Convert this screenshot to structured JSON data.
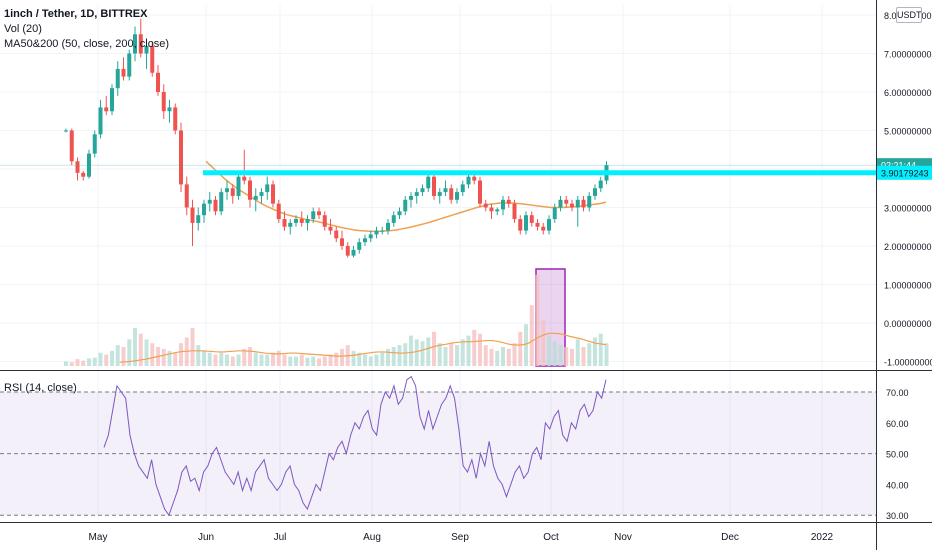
{
  "legend": {
    "title": "1inch / Tether, 1D, BITTREX",
    "volume": "Vol (20)",
    "moving_averages": "MA50&200 (50, close, 200, close)",
    "rsi": "RSI (14, close)"
  },
  "currency": "USDT",
  "price_axis": {
    "ticks": [
      "8.00000000",
      "7.00000000",
      "6.00000000",
      "5.00000000",
      "3.00000000",
      "2.00000000",
      "1.00000000",
      "0.00000000",
      "-1.00000000"
    ],
    "countdown": "02:21:44",
    "level_label": "3.90179243"
  },
  "rsi_axis": {
    "ticks": [
      "70.00",
      "60.00",
      "50.00",
      "40.00",
      "30.00"
    ]
  },
  "time_axis": {
    "labels": [
      "May",
      "Jun",
      "Jul",
      "Aug",
      "Sep",
      "Oct",
      "Nov",
      "Dec",
      "2022"
    ]
  },
  "colors": {
    "up": "#26a69a",
    "down": "#ef5350",
    "level_line": "#00f0ff",
    "ma_line": "#f0a050",
    "rsi_line": "#7e57c2",
    "highlight": "#9c27b0"
  },
  "chart_data": [
    {
      "type": "candlestick",
      "title": "1inch / Tether, 1D, BITTREX",
      "ylim": [
        -1.2,
        8.2
      ],
      "candles": [
        [
          5.0,
          5.05,
          4.95,
          5.0
        ],
        [
          5.0,
          5.05,
          4.1,
          4.2
        ],
        [
          4.2,
          4.3,
          3.7,
          3.9
        ],
        [
          3.9,
          3.95,
          3.7,
          3.8
        ],
        [
          3.8,
          4.5,
          3.75,
          4.4
        ],
        [
          4.4,
          5.0,
          4.3,
          4.9
        ],
        [
          4.9,
          5.8,
          4.8,
          5.6
        ],
        [
          5.6,
          5.9,
          5.4,
          5.5
        ],
        [
          5.5,
          6.2,
          5.4,
          6.1
        ],
        [
          6.1,
          6.8,
          5.9,
          6.6
        ],
        [
          6.6,
          6.9,
          6.3,
          6.4
        ],
        [
          6.4,
          7.1,
          6.3,
          7.0
        ],
        [
          7.0,
          7.7,
          6.8,
          7.5
        ],
        [
          7.5,
          7.9,
          6.9,
          7.0
        ],
        [
          7.0,
          7.4,
          6.6,
          7.2
        ],
        [
          7.2,
          7.3,
          6.4,
          6.5
        ],
        [
          6.5,
          6.7,
          5.9,
          6.0
        ],
        [
          6.0,
          6.2,
          5.3,
          5.5
        ],
        [
          5.5,
          5.8,
          5.2,
          5.6
        ],
        [
          5.6,
          5.7,
          4.9,
          5.0
        ],
        [
          5.0,
          5.2,
          3.4,
          3.6
        ],
        [
          3.6,
          3.8,
          2.8,
          3.0
        ],
        [
          3.0,
          3.2,
          2.0,
          2.6
        ],
        [
          2.6,
          3.0,
          2.4,
          2.8
        ],
        [
          2.8,
          3.2,
          2.6,
          3.1
        ],
        [
          3.1,
          3.4,
          2.9,
          3.2
        ],
        [
          3.2,
          3.3,
          2.8,
          2.9
        ],
        [
          2.9,
          3.5,
          2.8,
          3.4
        ],
        [
          3.4,
          3.7,
          3.2,
          3.5
        ],
        [
          3.5,
          3.6,
          3.1,
          3.3
        ],
        [
          3.3,
          3.9,
          3.2,
          3.8
        ],
        [
          3.8,
          4.5,
          3.6,
          3.7
        ],
        [
          3.7,
          3.8,
          3.0,
          3.2
        ],
        [
          3.2,
          3.5,
          2.9,
          3.3
        ],
        [
          3.3,
          3.5,
          3.1,
          3.4
        ],
        [
          3.4,
          3.8,
          3.2,
          3.6
        ],
        [
          3.6,
          3.7,
          3.0,
          3.1
        ],
        [
          3.1,
          3.2,
          2.6,
          2.7
        ],
        [
          2.7,
          2.9,
          2.4,
          2.5
        ],
        [
          2.5,
          2.7,
          2.3,
          2.6
        ],
        [
          2.6,
          2.8,
          2.5,
          2.7
        ],
        [
          2.7,
          2.9,
          2.5,
          2.6
        ],
        [
          2.6,
          2.8,
          2.4,
          2.7
        ],
        [
          2.7,
          3.0,
          2.6,
          2.9
        ],
        [
          2.9,
          3.0,
          2.7,
          2.8
        ],
        [
          2.8,
          2.9,
          2.4,
          2.5
        ],
        [
          2.5,
          2.7,
          2.3,
          2.4
        ],
        [
          2.4,
          2.5,
          2.1,
          2.2
        ],
        [
          2.2,
          2.4,
          1.9,
          2.0
        ],
        [
          2.0,
          2.1,
          1.7,
          1.75
        ],
        [
          1.75,
          2.0,
          1.7,
          1.9
        ],
        [
          1.9,
          2.2,
          1.8,
          2.1
        ],
        [
          2.1,
          2.3,
          2.0,
          2.2
        ],
        [
          2.2,
          2.4,
          2.1,
          2.3
        ],
        [
          2.3,
          2.5,
          2.2,
          2.4
        ],
        [
          2.4,
          2.5,
          2.3,
          2.4
        ],
        [
          2.4,
          2.7,
          2.3,
          2.6
        ],
        [
          2.6,
          2.9,
          2.5,
          2.8
        ],
        [
          2.8,
          3.0,
          2.7,
          2.9
        ],
        [
          2.9,
          3.3,
          2.8,
          3.2
        ],
        [
          3.2,
          3.4,
          3.0,
          3.3
        ],
        [
          3.3,
          3.5,
          3.1,
          3.4
        ],
        [
          3.4,
          3.6,
          3.3,
          3.5
        ],
        [
          3.5,
          3.9,
          3.4,
          3.8
        ],
        [
          3.8,
          3.9,
          3.2,
          3.3
        ],
        [
          3.3,
          3.5,
          3.1,
          3.4
        ],
        [
          3.4,
          3.7,
          3.3,
          3.5
        ],
        [
          3.5,
          3.6,
          3.1,
          3.2
        ],
        [
          3.2,
          3.5,
          3.1,
          3.4
        ],
        [
          3.4,
          3.7,
          3.3,
          3.6
        ],
        [
          3.6,
          3.9,
          3.5,
          3.8
        ],
        [
          3.8,
          3.95,
          3.6,
          3.7
        ],
        [
          3.7,
          3.8,
          3.0,
          3.1
        ],
        [
          3.1,
          3.2,
          2.9,
          3.0
        ],
        [
          3.0,
          3.1,
          2.7,
          2.9
        ],
        [
          2.9,
          3.0,
          2.8,
          2.95
        ],
        [
          2.95,
          3.3,
          2.8,
          3.2
        ],
        [
          3.2,
          3.3,
          3.0,
          3.1
        ],
        [
          3.1,
          3.2,
          2.6,
          2.7
        ],
        [
          2.7,
          2.8,
          2.3,
          2.4
        ],
        [
          2.4,
          2.9,
          2.3,
          2.8
        ],
        [
          2.8,
          2.9,
          2.5,
          2.6
        ],
        [
          2.6,
          2.7,
          2.4,
          2.5
        ],
        [
          2.5,
          2.6,
          2.3,
          2.4
        ],
        [
          2.4,
          2.8,
          2.3,
          2.7
        ],
        [
          2.7,
          3.1,
          2.6,
          3.0
        ],
        [
          3.0,
          3.3,
          2.9,
          3.2
        ],
        [
          3.2,
          3.3,
          3.0,
          3.1
        ],
        [
          3.1,
          3.2,
          2.9,
          3.0
        ],
        [
          3.0,
          3.3,
          2.5,
          3.2
        ],
        [
          3.2,
          3.3,
          2.9,
          3.0
        ],
        [
          3.0,
          3.4,
          2.9,
          3.3
        ],
        [
          3.3,
          3.6,
          3.2,
          3.5
        ],
        [
          3.5,
          3.8,
          3.4,
          3.7
        ],
        [
          3.7,
          4.2,
          3.6,
          4.1
        ]
      ],
      "series": [
        {
          "name": "MA50",
          "values": [
            4.2,
            4.05,
            3.9,
            3.75,
            3.62,
            3.5,
            3.4,
            3.3,
            3.2,
            3.1,
            3.02,
            2.95,
            2.88,
            2.82,
            2.78,
            2.74,
            2.7,
            2.67,
            2.64,
            2.6,
            2.56,
            2.52,
            2.48,
            2.45,
            2.42,
            2.4,
            2.39,
            2.38,
            2.38,
            2.39,
            2.4,
            2.42,
            2.45,
            2.48,
            2.52,
            2.56,
            2.6,
            2.65,
            2.7,
            2.75,
            2.8,
            2.85,
            2.9,
            2.95,
            3.0,
            3.04,
            3.08,
            3.1,
            3.12,
            3.12,
            3.11,
            3.1,
            3.08,
            3.06,
            3.04,
            3.02,
            3.0,
            3.0,
            3.0,
            3.01,
            3.02,
            3.04,
            3.06,
            3.08,
            3.1,
            3.14
          ]
        }
      ],
      "horizontal_level": 3.90179243,
      "last_price_marker": 4.1
    },
    {
      "type": "bar",
      "title": "Vol (20)",
      "values": [
        0.12,
        0.1,
        0.18,
        0.14,
        0.2,
        0.22,
        0.35,
        0.3,
        0.4,
        0.55,
        0.5,
        0.7,
        1.0,
        0.85,
        0.7,
        0.6,
        0.5,
        0.45,
        0.4,
        0.35,
        0.6,
        0.75,
        1.0,
        0.55,
        0.4,
        0.35,
        0.3,
        0.35,
        0.3,
        0.25,
        0.3,
        0.45,
        0.5,
        0.35,
        0.3,
        0.3,
        0.35,
        0.4,
        0.3,
        0.25,
        0.25,
        0.3,
        0.22,
        0.25,
        0.2,
        0.25,
        0.3,
        0.35,
        0.45,
        0.55,
        0.4,
        0.35,
        0.3,
        0.25,
        0.3,
        0.35,
        0.45,
        0.5,
        0.55,
        0.6,
        0.8,
        0.7,
        0.65,
        0.75,
        0.9,
        0.6,
        0.5,
        0.6,
        0.55,
        0.7,
        0.8,
        0.95,
        0.85,
        0.55,
        0.45,
        0.4,
        0.5,
        0.45,
        0.6,
        0.9,
        1.1,
        1.6,
        2.4,
        1.2,
        0.8,
        0.65,
        0.55,
        0.5,
        0.45,
        0.7,
        0.5,
        0.6,
        0.75,
        0.85,
        0.6
      ],
      "series": [
        {
          "name": "Volume MA",
          "values": [
            0.1,
            0.11,
            0.12,
            0.14,
            0.16,
            0.18,
            0.21,
            0.24,
            0.27,
            0.3,
            0.33,
            0.36,
            0.38,
            0.39,
            0.4,
            0.4,
            0.4,
            0.39,
            0.38,
            0.37,
            0.37,
            0.38,
            0.39,
            0.4,
            0.4,
            0.39,
            0.38,
            0.36,
            0.34,
            0.33,
            0.32,
            0.32,
            0.33,
            0.34,
            0.34,
            0.33,
            0.32,
            0.31,
            0.3,
            0.29,
            0.28,
            0.27,
            0.26,
            0.26,
            0.27,
            0.28,
            0.3,
            0.32,
            0.34,
            0.36,
            0.37,
            0.37,
            0.36,
            0.35,
            0.34,
            0.34,
            0.35,
            0.37,
            0.4,
            0.44,
            0.48,
            0.52,
            0.55,
            0.57,
            0.6,
            0.62,
            0.63,
            0.64,
            0.64,
            0.65,
            0.66,
            0.67,
            0.67,
            0.65,
            0.62,
            0.58,
            0.56,
            0.55,
            0.56,
            0.6,
            0.68,
            0.76,
            0.82,
            0.86,
            0.86,
            0.85,
            0.82,
            0.78,
            0.75,
            0.72,
            0.68,
            0.64,
            0.6,
            0.58,
            0.56
          ]
        }
      ]
    },
    {
      "type": "line",
      "title": "RSI (14, close)",
      "ylim": [
        28,
        76
      ],
      "series": [
        {
          "name": "RSI",
          "values": [
            52,
            56,
            64,
            72,
            70,
            68,
            56,
            50,
            46,
            44,
            42,
            48,
            40,
            36,
            32,
            30,
            34,
            38,
            44,
            46,
            41,
            42,
            38,
            44,
            46,
            50,
            52,
            48,
            44,
            42,
            40,
            44,
            38,
            42,
            38,
            44,
            46,
            48,
            42,
            40,
            38,
            40,
            44,
            46,
            40,
            38,
            34,
            32,
            36,
            40,
            38,
            44,
            50,
            48,
            52,
            54,
            50,
            56,
            60,
            58,
            62,
            64,
            58,
            56,
            66,
            70,
            68,
            72,
            66,
            68,
            74,
            75,
            72,
            62,
            58,
            64,
            58,
            62,
            66,
            68,
            72,
            68,
            58,
            46,
            44,
            48,
            42,
            50,
            46,
            54,
            46,
            42,
            40,
            36,
            40,
            44,
            46,
            42,
            44,
            50,
            52,
            48,
            60,
            58,
            62,
            64,
            56,
            54,
            60,
            58,
            64,
            66,
            62,
            64,
            70,
            68,
            74
          ]
        }
      ],
      "reference_lines": [
        70,
        50,
        30
      ]
    }
  ]
}
